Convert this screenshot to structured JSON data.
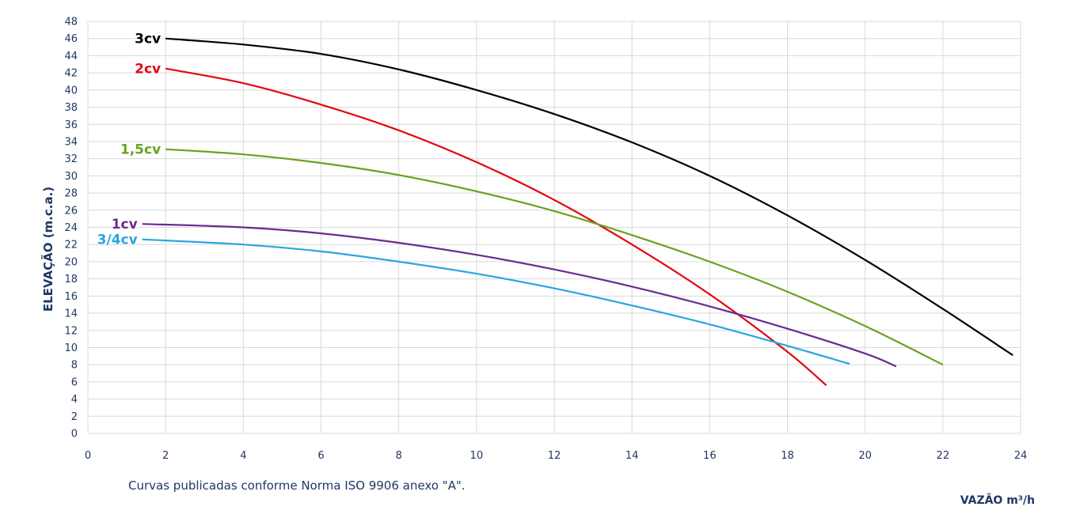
{
  "chart_data": {
    "type": "line",
    "xlabel": "VAZÃO m³/h",
    "ylabel": "ELEVAÇÃO (m.c.a.)",
    "xlim": [
      0,
      24
    ],
    "ylim": [
      0,
      48
    ],
    "xticks": [
      0,
      2,
      4,
      6,
      8,
      10,
      12,
      14,
      16,
      18,
      20,
      22,
      24
    ],
    "yticks": [
      0,
      2,
      4,
      6,
      8,
      10,
      12,
      14,
      16,
      18,
      20,
      22,
      24,
      26,
      28,
      30,
      32,
      34,
      36,
      38,
      40,
      42,
      44,
      46,
      48
    ],
    "grid": true,
    "footnote": "Curvas publicadas conforme Norma ISO 9906 anexo \"A\".",
    "series": [
      {
        "name": "3cv",
        "color": "#000000",
        "x": [
          2,
          4,
          6,
          8,
          10,
          12,
          14,
          16,
          18,
          20,
          22,
          23.8
        ],
        "y": [
          46,
          45.3,
          44.2,
          42.4,
          40,
          37.2,
          33.9,
          30,
          25.4,
          20.2,
          14.5,
          9.1
        ]
      },
      {
        "name": "2cv",
        "color": "#e30613",
        "x": [
          2,
          4,
          6,
          8,
          10,
          12,
          14,
          16,
          18,
          19
        ],
        "y": [
          42.5,
          40.8,
          38.3,
          35.3,
          31.6,
          27.2,
          22,
          16.2,
          9.5,
          5.6
        ]
      },
      {
        "name": "1,5cv",
        "color": "#6aa121",
        "x": [
          2,
          4,
          6,
          8,
          10,
          12,
          14,
          16,
          18,
          20,
          22
        ],
        "y": [
          33.1,
          32.5,
          31.5,
          30.1,
          28.2,
          25.9,
          23.1,
          20,
          16.5,
          12.5,
          8
        ]
      },
      {
        "name": "1cv",
        "color": "#6b2a8f",
        "x": [
          1.4,
          4,
          6,
          8,
          10,
          12,
          14,
          16,
          18,
          20,
          20.8
        ],
        "y": [
          24.4,
          24,
          23.3,
          22.2,
          20.8,
          19.1,
          17.1,
          14.8,
          12.2,
          9.3,
          7.8
        ]
      },
      {
        "name": "3/4cv",
        "color": "#29a6e0",
        "x": [
          1.4,
          4,
          6,
          8,
          10,
          12,
          14,
          16,
          18,
          19.6
        ],
        "y": [
          22.6,
          22,
          21.2,
          20,
          18.6,
          16.9,
          14.9,
          12.7,
          10.2,
          8.1
        ]
      }
    ]
  }
}
